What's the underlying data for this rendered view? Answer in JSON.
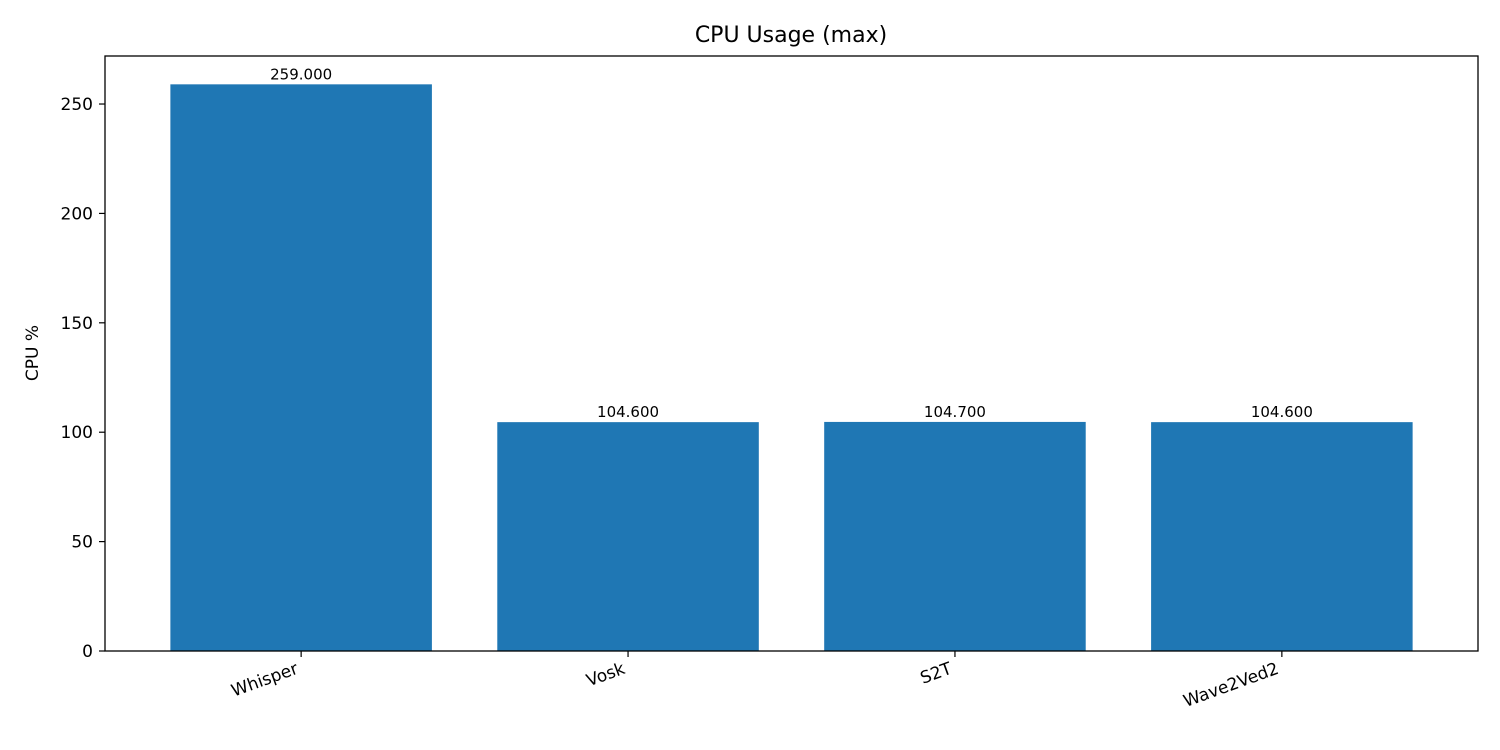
{
  "chart_data": {
    "type": "bar",
    "title": "CPU Usage (max)",
    "xlabel": "",
    "ylabel": "CPU %",
    "categories": [
      "Whisper",
      "Vosk",
      "S2T",
      "Wave2Ved2"
    ],
    "values": [
      259.0,
      104.6,
      104.7,
      104.6
    ],
    "value_labels": [
      "259.000",
      "104.600",
      "104.700",
      "104.600"
    ],
    "yticks": [
      0,
      50,
      100,
      150,
      200,
      250
    ],
    "ylim": [
      0,
      271.95
    ],
    "bar_color": "#1f77b4",
    "grid": false,
    "legend": "none"
  }
}
